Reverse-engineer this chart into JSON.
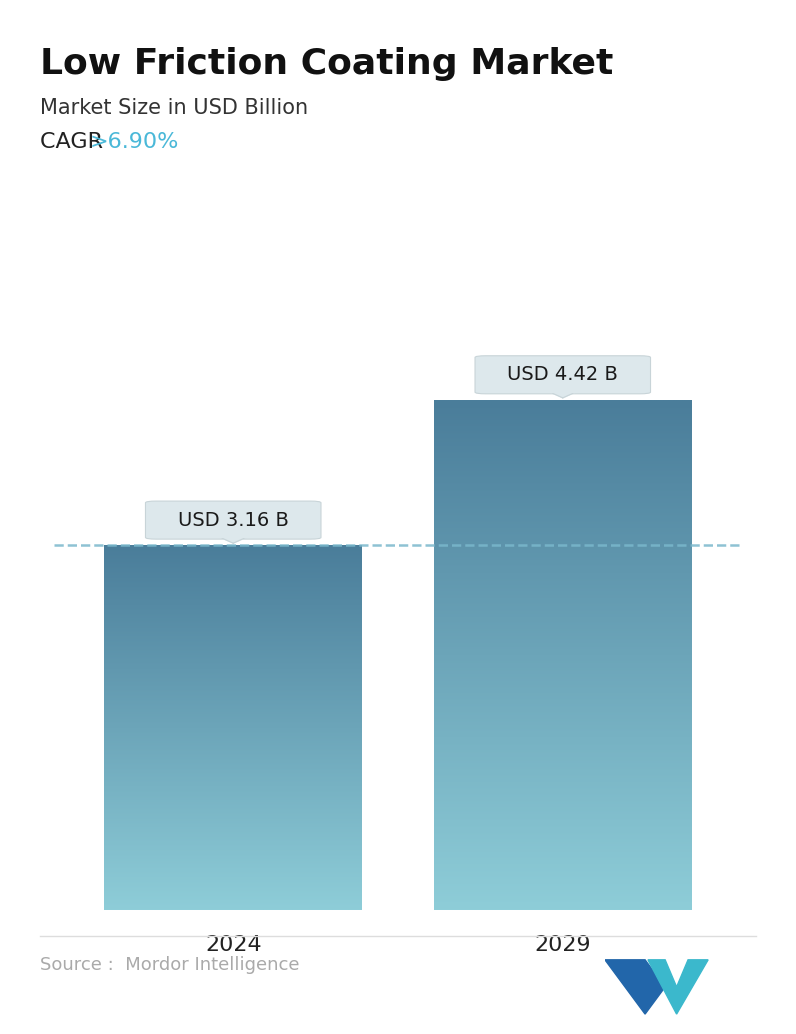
{
  "title": "Low Friction Coating Market",
  "subtitle": "Market Size in USD Billion",
  "cagr_label": "CAGR ",
  "cagr_value": ">6.90%",
  "cagr_color": "#4ab8d8",
  "categories": [
    "2024",
    "2029"
  ],
  "values": [
    3.16,
    4.42
  ],
  "bar_labels": [
    "USD 3.16 B",
    "USD 4.42 B"
  ],
  "bar_color_top": "#4a7d9a",
  "bar_color_bottom": "#8ecdd8",
  "dashed_line_y": 3.16,
  "dashed_line_color": "#7ab8cc",
  "ymin": 0,
  "ymax": 5.2,
  "source_text": "Source :  Mordor Intelligence",
  "source_color": "#aaaaaa",
  "background_color": "#ffffff",
  "title_fontsize": 26,
  "subtitle_fontsize": 15,
  "cagr_fontsize": 16,
  "bar_label_fontsize": 14,
  "xlabel_fontsize": 16,
  "source_fontsize": 13,
  "x_positions": [
    0.27,
    0.73
  ],
  "bar_width": 0.36
}
